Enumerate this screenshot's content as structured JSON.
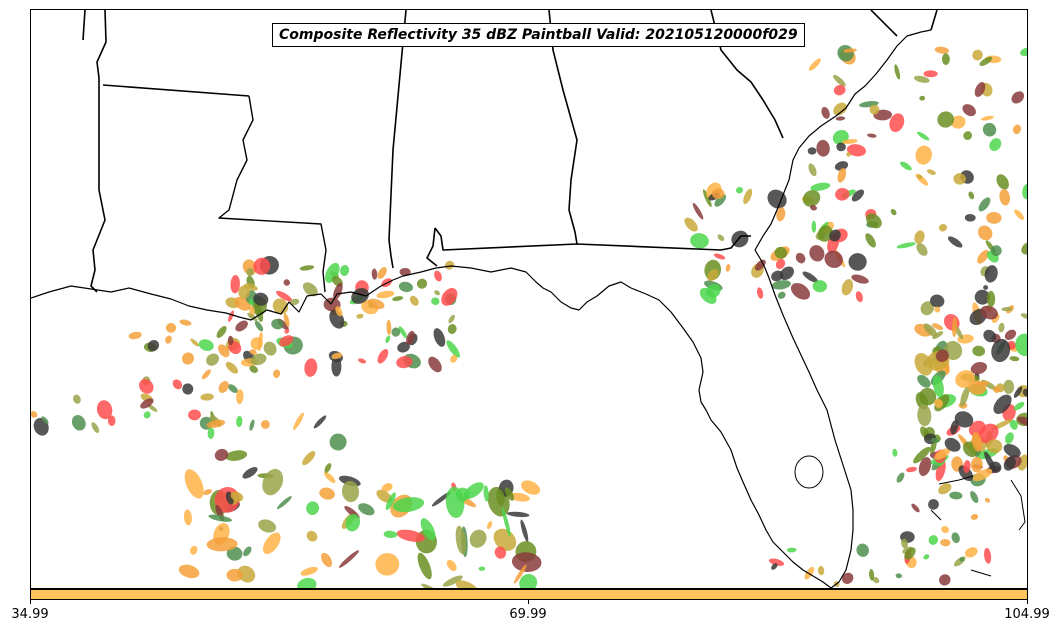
{
  "title": "Composite Reflectivity 35 dBZ Paintball Valid: 202105120000f029",
  "colorbar": {
    "color": "#ffc45e",
    "ticks": [
      "34.99",
      "69.99",
      "104.99"
    ]
  },
  "member_colors": [
    "#ff4d4d",
    "#f5a03a",
    "#ffb347",
    "#4cd64c",
    "#8a3b3b",
    "#6b8f22",
    "#9aa34a",
    "#3a3a3a",
    "#4f8f4f",
    "#c9a93a"
  ],
  "land_color": "#ffffff",
  "border_color": "#000000"
}
